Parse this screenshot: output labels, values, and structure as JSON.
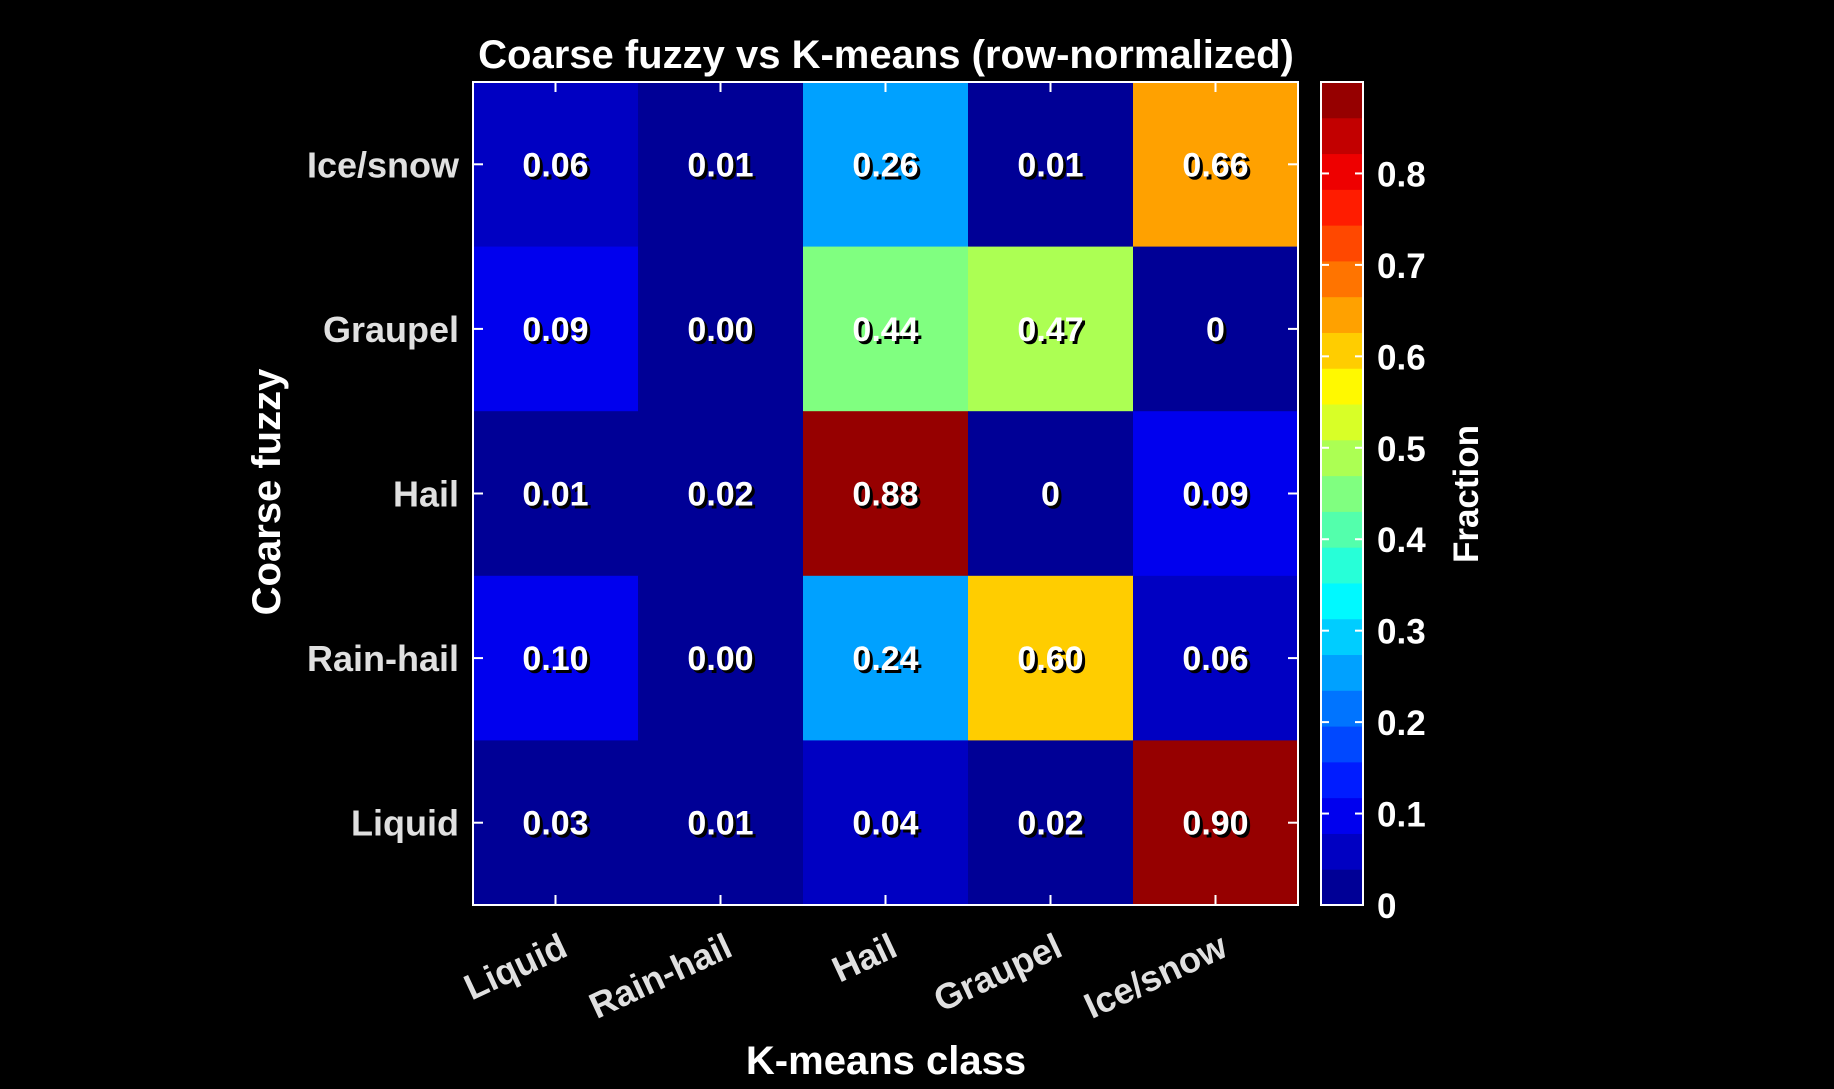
{
  "chart_data": {
    "type": "heatmap",
    "title": "Coarse fuzzy vs K-means (row-normalized)",
    "xlabel": "K-means class",
    "ylabel": "Coarse fuzzy",
    "x_categories": [
      "Liquid",
      "Rain-hail",
      "Hail",
      "Graupel",
      "Ice/snow"
    ],
    "y_categories_top_to_bottom": [
      "Ice/snow",
      "Graupel",
      "Hail",
      "Rain-hail",
      "Liquid"
    ],
    "values": [
      [
        0.06,
        0.01,
        0.26,
        0.01,
        0.66
      ],
      [
        0.09,
        0.0,
        0.44,
        0.47,
        0.0
      ],
      [
        0.01,
        0.02,
        0.88,
        0.0,
        0.09
      ],
      [
        0.1,
        0.0,
        0.24,
        0.6,
        0.06
      ],
      [
        0.03,
        0.01,
        0.04,
        0.02,
        0.9
      ]
    ],
    "cell_labels": [
      [
        "0.06",
        "0.01",
        "0.26",
        "0.01",
        "0.66"
      ],
      [
        "0.09",
        "0.00",
        "0.44",
        "0.47",
        "0"
      ],
      [
        "0.01",
        "0.02",
        "0.88",
        "0",
        "0.09"
      ],
      [
        "0.10",
        "0.00",
        "0.24",
        "0.60",
        "0.06"
      ],
      [
        "0.03",
        "0.01",
        "0.04",
        "0.02",
        "0.90"
      ]
    ],
    "colorbar": {
      "label": "Fraction",
      "colormap": "jet",
      "levels": 23,
      "range": [
        0,
        0.9
      ],
      "ticks": [
        0,
        0.1,
        0.2,
        0.3,
        0.4,
        0.5,
        0.6,
        0.7,
        0.8
      ],
      "tick_labels": [
        "0",
        "0.1",
        "0.2",
        "0.3",
        "0.4",
        "0.5",
        "0.6",
        "0.7",
        "0.8"
      ]
    },
    "colors": {
      "background": "#000000",
      "axis": "#ffffff",
      "text": "#ffffff"
    }
  }
}
